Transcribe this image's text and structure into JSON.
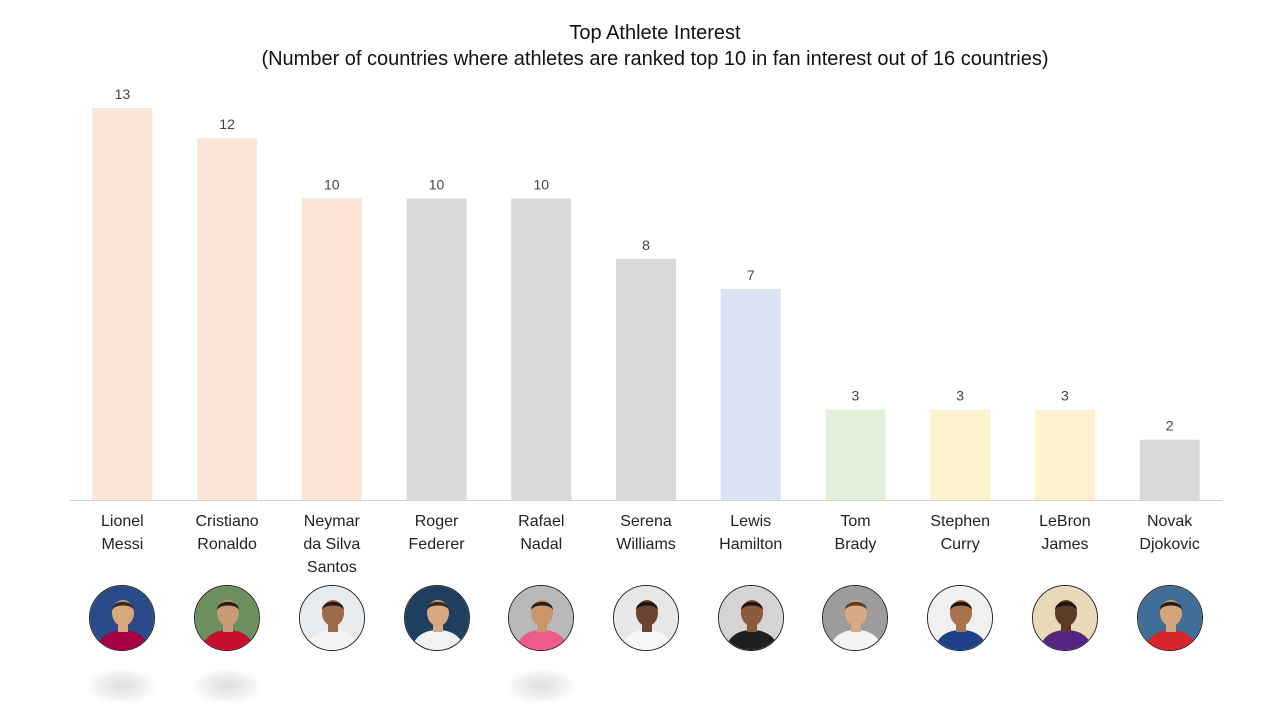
{
  "chart_data": {
    "type": "bar",
    "title": "Top Athlete Interest",
    "subtitle": "(Number of countries where athletes are ranked top 10 in fan interest out of 16 countries)",
    "categories": [
      [
        "Lionel",
        "Messi"
      ],
      [
        "Cristiano",
        "Ronaldo"
      ],
      [
        "Neymar",
        "da Silva",
        "Santos"
      ],
      [
        "Roger",
        "Federer"
      ],
      [
        "Rafael",
        "Nadal"
      ],
      [
        "Serena",
        "Williams"
      ],
      [
        "Lewis",
        "Hamilton"
      ],
      [
        "Tom",
        "Brady"
      ],
      [
        "Stephen",
        "Curry"
      ],
      [
        "LeBron",
        "James"
      ],
      [
        "Novak",
        "Djokovic"
      ]
    ],
    "values": [
      13,
      12,
      10,
      10,
      10,
      8,
      7,
      3,
      3,
      3,
      2
    ],
    "bar_colors": [
      "#fbe5d6",
      "#fbe5d6",
      "#fbe5d6",
      "#d9d9d9",
      "#d9d9d9",
      "#d9d9d9",
      "#dae3f3",
      "#e2f0d9",
      "#fff2cc",
      "#fff2cc",
      "#d9d9d9"
    ],
    "ylim": [
      0,
      13
    ],
    "xlabel": "",
    "ylabel": "",
    "grid": false,
    "legend": "none"
  },
  "avatars": [
    {
      "icon": "athlete-photo-messi-icon",
      "bg": "#2a4a8a",
      "shirt": "#a50044",
      "skin": "#d9a77e",
      "hair": "#3a2a1e"
    },
    {
      "icon": "athlete-photo-ronaldo-icon",
      "bg": "#6b8f5e",
      "shirt": "#c8102e",
      "skin": "#c99a73",
      "hair": "#2b1d14"
    },
    {
      "icon": "athlete-photo-neymar-icon",
      "bg": "#e9ecef",
      "shirt": "#f4f4f4",
      "skin": "#9c6b4a",
      "hair": "#2b1d14"
    },
    {
      "icon": "athlete-photo-federer-icon",
      "bg": "#1f3f5f",
      "shirt": "#f2f2f2",
      "skin": "#d8a982",
      "hair": "#3a2a1e"
    },
    {
      "icon": "athlete-photo-nadal-icon",
      "bg": "#b9b9b9",
      "shirt": "#ef5a8c",
      "skin": "#c9956b",
      "hair": "#2b1d14"
    },
    {
      "icon": "athlete-photo-serena-icon",
      "bg": "#e7e7e7",
      "shirt": "#f7f7f7",
      "skin": "#6b4430",
      "hair": "#1e1410"
    },
    {
      "icon": "athlete-photo-hamilton-icon",
      "bg": "#d4d4d4",
      "shirt": "#1f1f1f",
      "skin": "#8a5a3e",
      "hair": "#1e1410"
    },
    {
      "icon": "athlete-photo-brady-icon",
      "bg": "#9c9c9c",
      "shirt": "#f4f4f4",
      "skin": "#d8a982",
      "hair": "#5a3e2a"
    },
    {
      "icon": "athlete-photo-curry-icon",
      "bg": "#f0f0f0",
      "shirt": "#1d428a",
      "skin": "#a8724d",
      "hair": "#1e1410"
    },
    {
      "icon": "athlete-photo-lebron-icon",
      "bg": "#e8d9b8",
      "shirt": "#552583",
      "skin": "#5e3a28",
      "hair": "#1e1410"
    },
    {
      "icon": "athlete-photo-djokovic-icon",
      "bg": "#3f6e96",
      "shirt": "#d6262b",
      "skin": "#d4a47c",
      "hair": "#2b1d14"
    }
  ]
}
